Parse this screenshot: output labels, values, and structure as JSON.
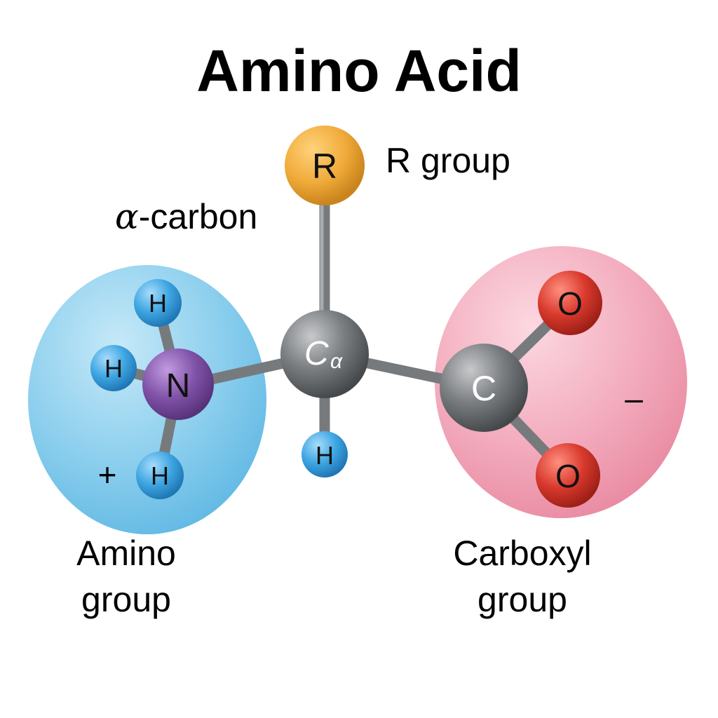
{
  "title": "Amino Acid",
  "labels": {
    "r_group": "R group",
    "alpha_carbon_symbol": "α",
    "alpha_carbon_suffix": "-carbon",
    "amino_line1": "Amino",
    "amino_line2": "group",
    "carboxyl_line1": "Carboxyl",
    "carboxyl_line2": "group"
  },
  "atoms": {
    "r": "R",
    "alpha_c_main": "C",
    "alpha_c_sub": "α",
    "n": "N",
    "carboxyl_c": "C",
    "o_top": "O",
    "o_bottom": "O",
    "h": "H"
  },
  "charges": {
    "amino": "+",
    "carboxyl": "–"
  },
  "colors": {
    "amino_region": "#8fd0ee",
    "carboxyl_region": "#f3aebf",
    "r_atom": "#f0aa3a",
    "nitrogen": "#8052a8",
    "carbon": "#6f7275",
    "oxygen": "#d9392d",
    "hydrogen": "#3ea6e2",
    "bond": "#777a7d"
  }
}
